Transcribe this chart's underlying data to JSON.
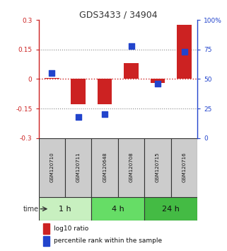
{
  "title": "GDS3433 / 34904",
  "samples": [
    "GSM120710",
    "GSM120711",
    "GSM120648",
    "GSM120708",
    "GSM120715",
    "GSM120716"
  ],
  "log10_ratio": [
    0.005,
    -0.128,
    -0.13,
    0.08,
    -0.02,
    0.275
  ],
  "percentile_rank": [
    55,
    18,
    20,
    78,
    46,
    73
  ],
  "ylim_left": [
    -0.3,
    0.3
  ],
  "ylim_right": [
    0,
    100
  ],
  "yticks_left": [
    -0.3,
    -0.15,
    0,
    0.15,
    0.3
  ],
  "yticks_right": [
    0,
    25,
    50,
    75,
    100
  ],
  "ytick_labels_left": [
    "-0.3",
    "-0.15",
    "0",
    "0.15",
    "0.3"
  ],
  "ytick_labels_right": [
    "0",
    "25",
    "50",
    "75",
    "100%"
  ],
  "bar_color": "#cc2222",
  "dot_color": "#2244cc",
  "bar_width": 0.55,
  "dot_size": 30,
  "dotted_line_color": "#888888",
  "zero_line_color": "#cc2222",
  "groups": [
    {
      "label": "1 h",
      "cols": [
        0,
        1
      ],
      "color": "#c8f0c0"
    },
    {
      "label": "4 h",
      "cols": [
        2,
        3
      ],
      "color": "#66dd66"
    },
    {
      "label": "24 h",
      "cols": [
        4,
        5
      ],
      "color": "#44bb44"
    }
  ],
  "time_label": "time",
  "legend_bar_label": "log10 ratio",
  "legend_dot_label": "percentile rank within the sample",
  "bg_color": "#ffffff",
  "sample_box_color": "#cccccc",
  "sample_box_edge": "#333333"
}
